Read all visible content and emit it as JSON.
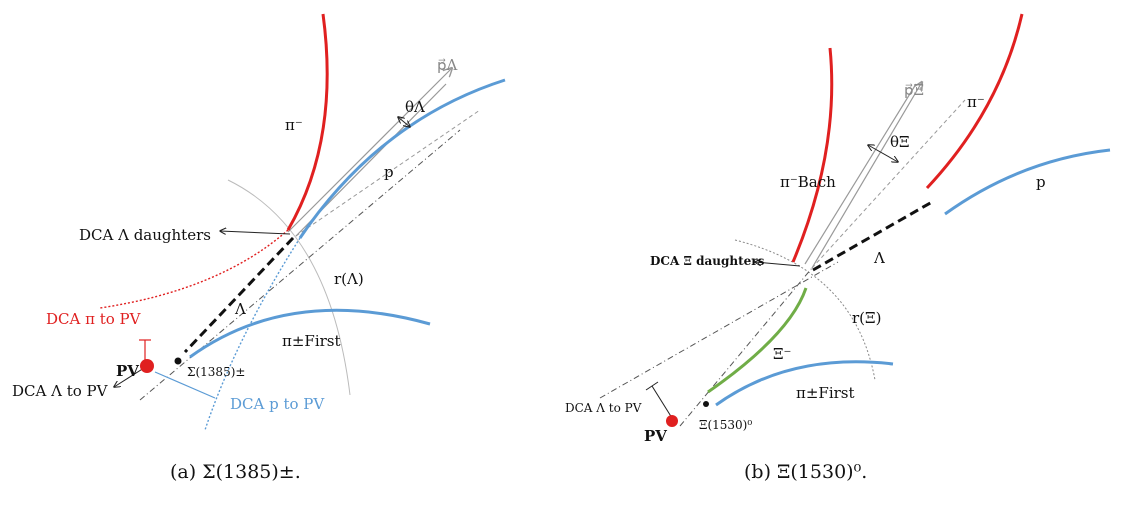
{
  "panel_a": {
    "caption": "(a) Σ(1385)±.",
    "pi_minus": "π⁻",
    "proton": "p",
    "p_lambda": "p⃗Λ",
    "theta_lambda": "θΛ",
    "dca_daughters": "DCA Λ daughters",
    "r_lambda": "r(Λ)",
    "lambda": "Λ",
    "dca_pi_pv": "DCA π to PV",
    "pi_first": "π±First",
    "pv": "PV",
    "sigma_label": "Σ(1385)±",
    "dca_lambda_pv": "DCA Λ to PV",
    "dca_p_pv": "DCA p to PV"
  },
  "panel_b": {
    "caption": "(b) Ξ(1530)⁰.",
    "p_xi": "p⃗Ξ",
    "pi_minus": "π⁻",
    "theta_xi": "θΞ",
    "pi_bach": "π⁻Bach",
    "proton": "p",
    "dca_daughters": "DCA Ξ daughters",
    "lambda": "Λ",
    "r_xi": "r(Ξ)",
    "xi_minus": "Ξ⁻",
    "pi_first": "π±First",
    "dca_lambda_pv": "DCA Λ to PV",
    "pv": "PV",
    "xi_label": "Ξ(1530)⁰"
  },
  "colors": {
    "red": "#e02020",
    "blue": "#5b9bd5",
    "green": "#70ad47",
    "gray": "#999999",
    "black": "#111111"
  }
}
